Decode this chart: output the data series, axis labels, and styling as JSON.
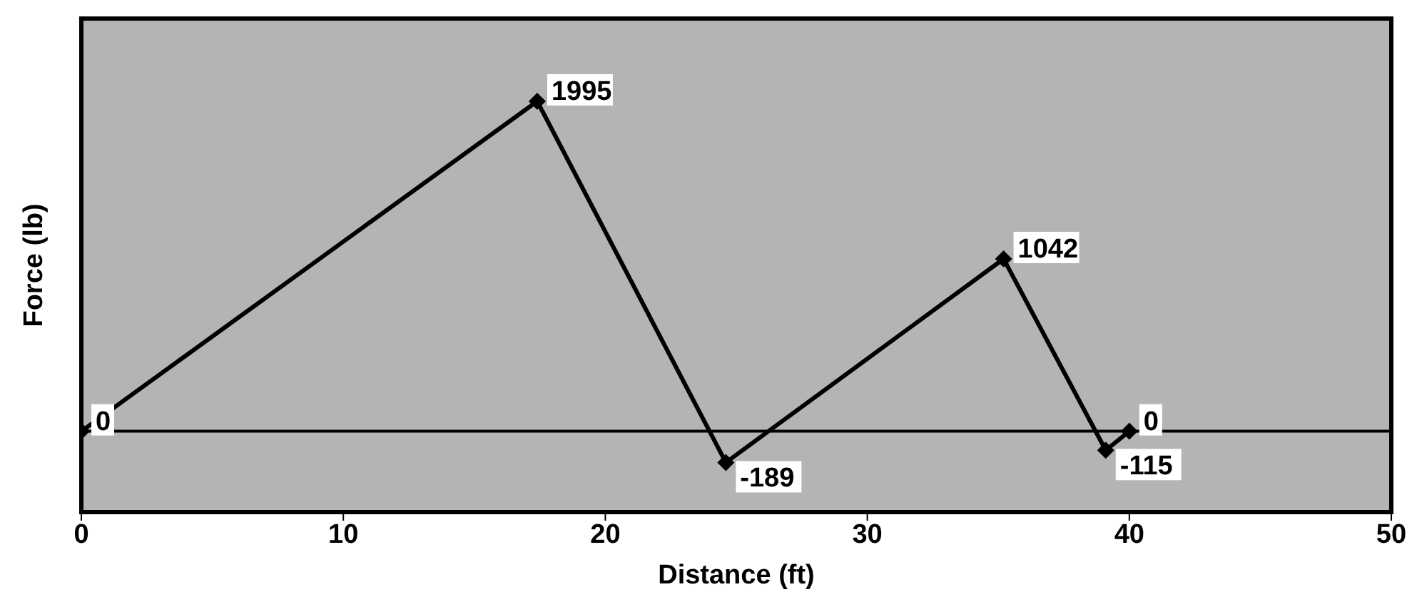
{
  "chart_data": {
    "type": "line",
    "xlabel": "Distance (ft)",
    "ylabel": "Force (lb)",
    "x": [
      0,
      17.4,
      24.6,
      35.2,
      39.1,
      40
    ],
    "series": [
      {
        "color": "#000000",
        "values": [
          0,
          1995,
          -189,
          1042,
          -115,
          0
        ]
      }
    ],
    "data_labels": true,
    "xlim": [
      0,
      50
    ],
    "xticks": [
      0,
      10,
      20,
      30,
      40,
      50
    ],
    "tick_labels": "x",
    "ref_lines": [
      {
        "axis": "y",
        "value": 0,
        "color": "#000000"
      }
    ],
    "marker": "diamond",
    "line_style": "solid",
    "legend": false
  }
}
